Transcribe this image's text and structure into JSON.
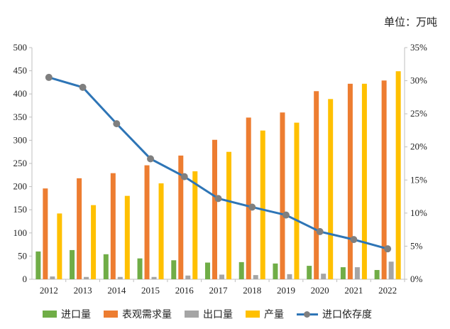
{
  "unit_label": "单位：万吨",
  "chart_data": {
    "type": "bar",
    "categories": [
      "2012",
      "2013",
      "2014",
      "2015",
      "2016",
      "2017",
      "2018",
      "2019",
      "2020",
      "2021",
      "2022"
    ],
    "series": [
      {
        "name": "进口量",
        "type": "bar",
        "axis": "left",
        "color": "#70ad47",
        "values": [
          60,
          63,
          54,
          45,
          41,
          36,
          37,
          34,
          29,
          26,
          20
        ]
      },
      {
        "name": "表观需求量",
        "type": "bar",
        "axis": "left",
        "color": "#ed7d31",
        "values": [
          196,
          218,
          229,
          246,
          267,
          301,
          349,
          360,
          406,
          422,
          429
        ]
      },
      {
        "name": "出口量",
        "type": "bar",
        "axis": "left",
        "color": "#a5a5a5",
        "values": [
          6,
          5,
          5,
          5,
          8,
          10,
          9,
          11,
          12,
          26,
          38
        ]
      },
      {
        "name": "产量",
        "type": "bar",
        "axis": "left",
        "color": "#ffc000",
        "values": [
          142,
          160,
          180,
          207,
          233,
          275,
          321,
          338,
          389,
          422,
          449
        ]
      },
      {
        "name": "进口依存度",
        "type": "line",
        "axis": "right",
        "color": "#2e75b6",
        "marker_color": "#7f7f7f",
        "values": [
          30.5,
          29.0,
          23.5,
          18.2,
          15.5,
          12.2,
          10.9,
          9.7,
          7.2,
          6.0,
          4.6
        ]
      }
    ],
    "y_left": {
      "min": 0,
      "max": 500,
      "step": 50,
      "ticks": [
        "0",
        "50",
        "100",
        "150",
        "200",
        "250",
        "300",
        "350",
        "400",
        "450",
        "500"
      ]
    },
    "y_right": {
      "min": 0,
      "max": 35,
      "step": 5,
      "ticks": [
        "0%",
        "5%",
        "10%",
        "15%",
        "20%",
        "25%",
        "30%",
        "35%"
      ]
    },
    "grid": false,
    "legend_position": "bottom"
  }
}
